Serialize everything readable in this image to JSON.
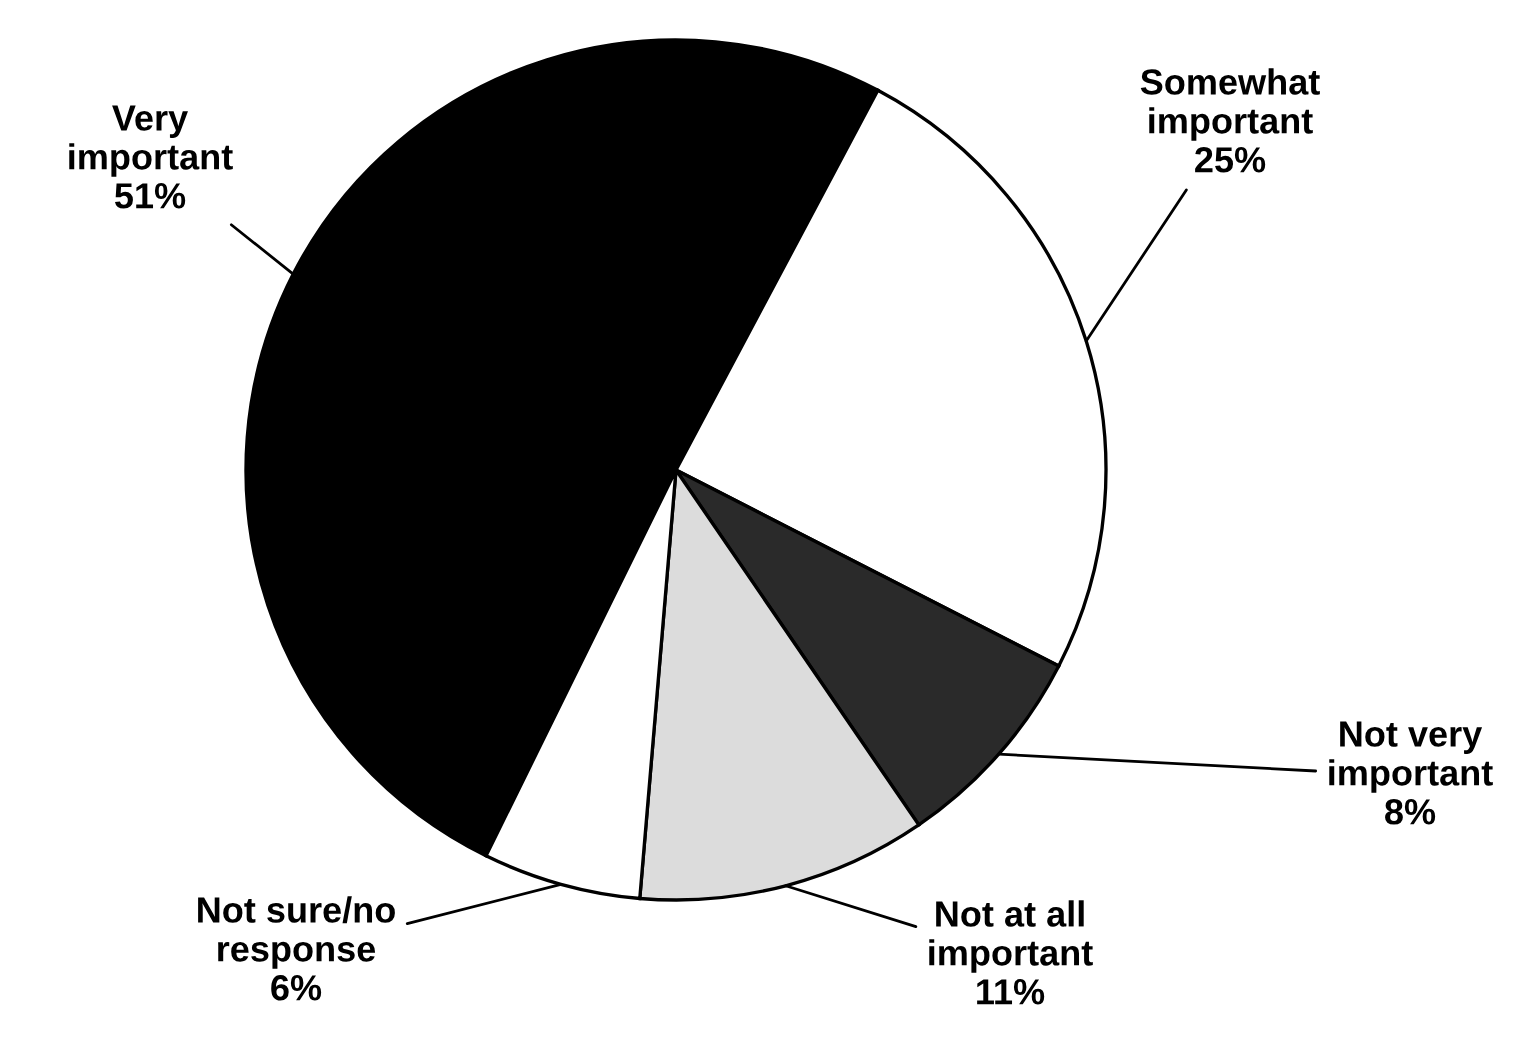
{
  "chart_data": {
    "type": "pie",
    "categories": [
      "Very\nimportant",
      "Somewhat\nimportant",
      "Not very\nimportant",
      "Not at all\nimportant",
      "Not sure/no\nresponse"
    ],
    "values": [
      51,
      25,
      8,
      11,
      6
    ],
    "value_labels": [
      "51%",
      "25%",
      "8%",
      "11%",
      "6%"
    ],
    "colors": [
      "#000000",
      "#ffffff",
      "#2a2a2a",
      "#dcdcdc",
      "#ffffff"
    ]
  }
}
